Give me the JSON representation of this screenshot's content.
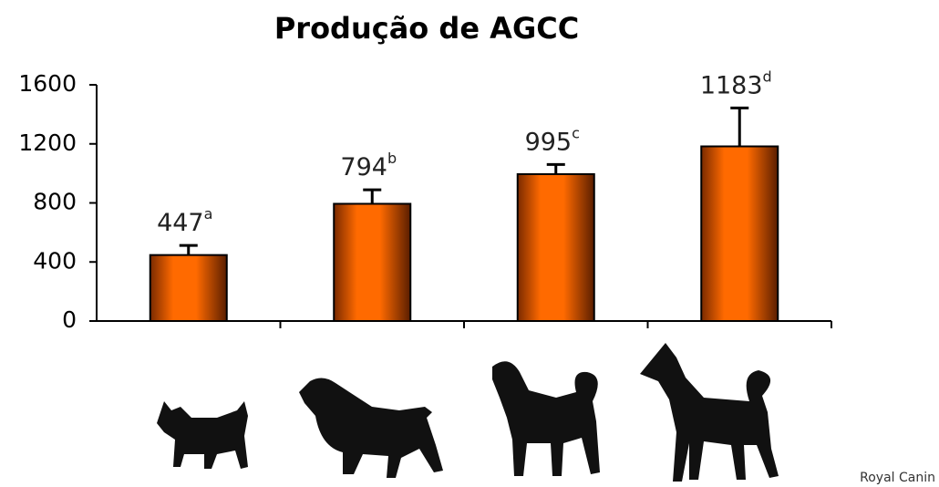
{
  "chart_data": {
    "type": "bar",
    "title": "Produção de AGCC",
    "categories": [
      null,
      null,
      null,
      null
    ],
    "values": [
      447,
      794,
      995,
      1183
    ],
    "errors": [
      65,
      95,
      65,
      260
    ],
    "letters": [
      "a",
      "b",
      "c",
      "d"
    ],
    "color": "#ff6600",
    "ylim": [
      0,
      1600
    ],
    "yticks": [
      0,
      400,
      800,
      1200,
      1600
    ],
    "grid": false
  },
  "source": "Royal Canin"
}
